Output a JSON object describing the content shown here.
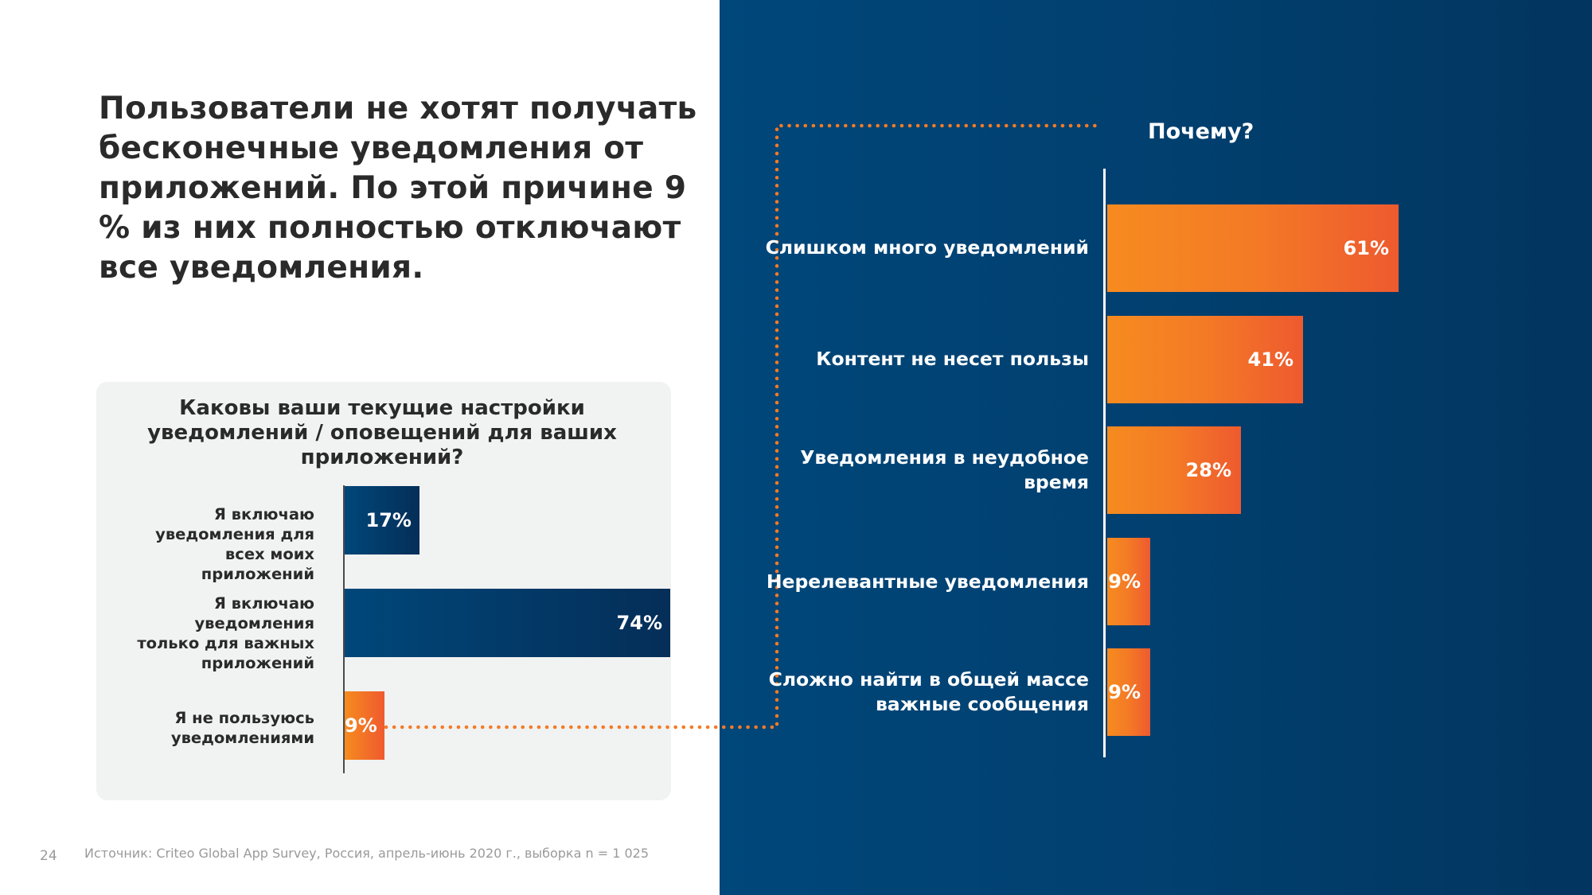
{
  "headline": "Пользователи не хотят получать бесконечные уведомления от приложений. По этой причине 9 % из них полностью отключают все уведомления.",
  "colors": {
    "navy": "#00477a",
    "orange": "#f47a26",
    "panel": "#013f6e",
    "survey_box": "#f1f2f2"
  },
  "chart_data": [
    {
      "type": "bar",
      "orientation": "horizontal",
      "title": "Каковы ваши текущие настройки уведомлений / оповещений для ваших приложений?",
      "categories": [
        "Я включаю уведомления для всех моих приложений",
        "Я включаю уведомления только для важных приложений",
        "Я не пользуюсь уведомлениями"
      ],
      "values": [
        17,
        74,
        9
      ],
      "value_labels": [
        "17%",
        "74%",
        "9%"
      ],
      "unit": "%",
      "xlim": [
        0,
        74
      ],
      "grid": false
    },
    {
      "type": "bar",
      "orientation": "horizontal",
      "title": "Почему?",
      "categories": [
        "Слишком много уведомлений",
        "Контент не несет пользы",
        "Уведомления в неудобное время",
        "Нерелевантные уведомления",
        "Сложно найти в общей массе важные сообщения"
      ],
      "values": [
        61,
        41,
        28,
        9,
        9
      ],
      "value_labels": [
        "61%",
        "41%",
        "28%",
        "9%",
        "9%"
      ],
      "unit": "%",
      "xlim": [
        0,
        61
      ],
      "grid": false
    }
  ],
  "footer": {
    "page_number": "24",
    "source": "Источник: Criteo Global App Survey, Россия, апрель-июнь 2020 г., выборка n = 1 025"
  }
}
